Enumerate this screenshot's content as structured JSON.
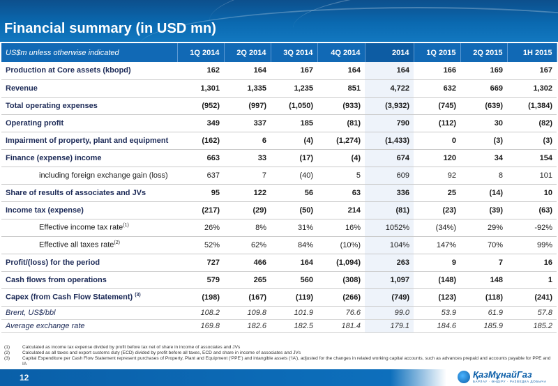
{
  "slide": {
    "title": "Financial summary (in USD mn)",
    "page_number": "12"
  },
  "table": {
    "header": [
      "US$m unless otherwise indicated",
      "1Q 2014",
      "2Q 2014",
      "3Q 2014",
      "4Q 2014",
      "2014",
      "1Q 2015",
      "2Q 2015",
      "1H 2015"
    ],
    "rows": [
      {
        "label": "Production at Core assets (kbopd)",
        "values": [
          "162",
          "164",
          "167",
          "164",
          "164",
          "166",
          "169",
          "167"
        ]
      },
      {
        "label": "Revenue",
        "values": [
          "1,301",
          "1,335",
          "1,235",
          "851",
          "4,722",
          "632",
          "669",
          "1,302"
        ]
      },
      {
        "label": "Total operating expenses",
        "values": [
          "(952)",
          "(997)",
          "(1,050)",
          "(933)",
          "(3,932)",
          "(745)",
          "(639)",
          "(1,384)"
        ]
      },
      {
        "label": "Operating profit",
        "values": [
          "349",
          "337",
          "185",
          "(81)",
          "790",
          "(112)",
          "30",
          "(82)"
        ]
      },
      {
        "label": "Impairment of property, plant and equipment",
        "values": [
          "(162)",
          "6",
          "(4)",
          "(1,274)",
          "(1,433)",
          "0",
          "(3)",
          "(3)"
        ]
      },
      {
        "label": "Finance (expense) income",
        "values": [
          "663",
          "33",
          "(17)",
          "(4)",
          "674",
          "120",
          "34",
          "154"
        ]
      },
      {
        "label": "including foreign exchange gain (loss)",
        "values": [
          "637",
          "7",
          "(40)",
          "5",
          "609",
          "92",
          "8",
          "101"
        ]
      },
      {
        "label": "Share of results of associates and JVs",
        "values": [
          "95",
          "122",
          "56",
          "63",
          "336",
          "25",
          "(14)",
          "10"
        ]
      },
      {
        "label": "Income tax (expense)",
        "values": [
          "(217)",
          "(29)",
          "(50)",
          "214",
          "(81)",
          "(23)",
          "(39)",
          "(63)"
        ]
      },
      {
        "label": "Effective income tax rate",
        "sup": "(1)",
        "values": [
          "26%",
          "8%",
          "31%",
          "16%",
          "1052%",
          "(34%)",
          "29%",
          "-92%"
        ]
      },
      {
        "label": "Effective all taxes rate",
        "sup": "(2)",
        "values": [
          "52%",
          "62%",
          "84%",
          "(10%)",
          "104%",
          "147%",
          "70%",
          "99%"
        ]
      },
      {
        "label": "Profit/(loss) for the period",
        "values": [
          "727",
          "466",
          "164",
          "(1,094)",
          "263",
          "9",
          "7",
          "16"
        ]
      },
      {
        "label": "Cash flows from operations",
        "values": [
          "579",
          "265",
          "560",
          "(308)",
          "1,097",
          "(148)",
          "148",
          "1"
        ]
      },
      {
        "label": "Capex (from Cash Flow Statement) ",
        "sup": "(3)",
        "values": [
          "(198)",
          "(167)",
          "(119)",
          "(266)",
          "(749)",
          "(123)",
          "(118)",
          "(241)"
        ]
      },
      {
        "label": "Brent, US$/bbl",
        "values": [
          "108.2",
          "109.8",
          "101.9",
          "76.6",
          "99.0",
          "53.9",
          "61.9",
          "57.8"
        ]
      },
      {
        "label": "Average exchange rate",
        "values": [
          "169.8",
          "182.6",
          "182.5",
          "181.4",
          "179.1",
          "184.6",
          "185.9",
          "185.2"
        ]
      }
    ]
  },
  "footnotes": [
    {
      "num": "(1)",
      "text": "Calculated as income tax expense divided by profit before tax net of share in income of associates and JVs"
    },
    {
      "num": "(2)",
      "text": "Calculated as all taxes and export customs duty (ECD) divided by profit before all taxes, ECD and share in income of associates and JVs"
    },
    {
      "num": "(3)",
      "text": "Capital Expenditure per Cash Flow Statement represent purchases of Property, Plant and Equipment (‘PPE’) and intangible assets (‘IA’), adjusted for the changes in related working capital accounts, such as advances prepaid and accounts payable for PPE and IA"
    }
  ],
  "logo": {
    "name": "ҚазМұнайГаз",
    "tagline": "БАРЛАУ · ӨНДІРУ · РАЗВЕДКА ДОБЫЧА"
  },
  "colors": {
    "header_blue": "#0a69b0",
    "table_header_blue": "#1169b5",
    "label_navy": "#1c2a57"
  }
}
